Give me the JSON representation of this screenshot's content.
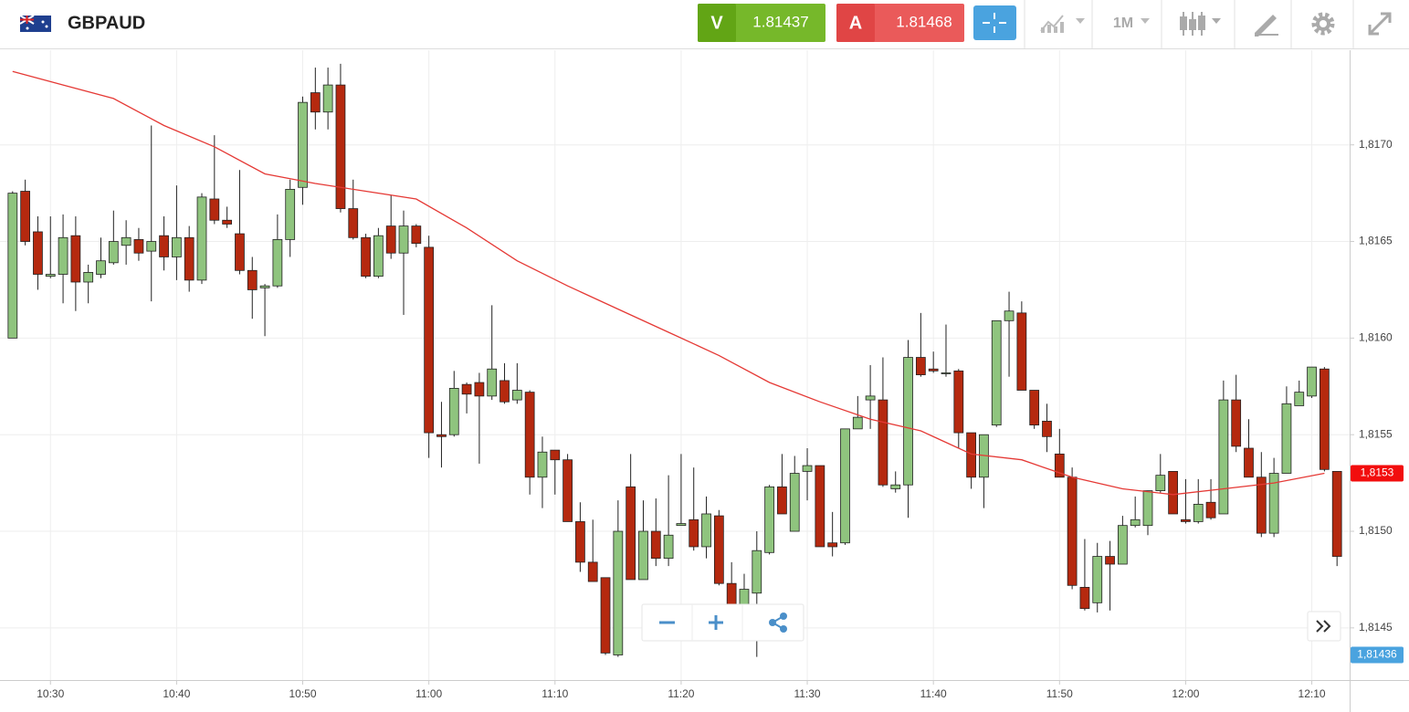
{
  "header": {
    "symbol": "GBPAUD",
    "sell_label": "V",
    "sell_price": "1.81437",
    "buy_label": "A",
    "buy_price": "1.81468",
    "timeframe": "1M"
  },
  "chart_data": {
    "type": "candlestick",
    "x": [
      "10:27",
      "10:28",
      "10:29",
      "10:30",
      "10:31",
      "10:32",
      "10:33",
      "10:34",
      "10:35",
      "10:36",
      "10:37",
      "10:38",
      "10:39",
      "10:40",
      "10:41",
      "10:42",
      "10:43",
      "10:44",
      "10:45",
      "10:46",
      "10:47",
      "10:48",
      "10:49",
      "10:50",
      "10:51",
      "10:52",
      "10:53",
      "10:54",
      "10:55",
      "10:56",
      "10:57",
      "10:58",
      "10:59",
      "11:00",
      "11:01",
      "11:02",
      "11:03",
      "11:04",
      "11:05",
      "11:06",
      "11:07",
      "11:08",
      "11:09",
      "11:10",
      "11:11",
      "11:12",
      "11:13",
      "11:14",
      "11:15",
      "11:16",
      "11:17",
      "11:18",
      "11:19",
      "11:20",
      "11:21",
      "11:22",
      "11:23",
      "11:24",
      "11:25",
      "11:26",
      "11:27",
      "11:28",
      "11:29",
      "11:30",
      "11:31",
      "11:32",
      "11:33",
      "11:34",
      "11:35",
      "11:36",
      "11:37",
      "11:38",
      "11:39",
      "11:40",
      "11:41",
      "11:42",
      "11:43",
      "11:44",
      "11:45",
      "11:46",
      "11:47",
      "11:48",
      "11:49",
      "11:50",
      "11:51",
      "11:52",
      "11:53",
      "11:54",
      "11:55",
      "11:56",
      "11:57",
      "11:58",
      "11:59",
      "12:00",
      "12:01",
      "12:02",
      "12:03",
      "12:04",
      "12:05",
      "12:06",
      "12:07",
      "12:08",
      "12:09",
      "12:10",
      "12:11",
      "12:12"
    ],
    "open": [
      1.816,
      1.81676,
      1.81655,
      1.81632,
      1.81633,
      1.81653,
      1.81629,
      1.81633,
      1.81639,
      1.81648,
      1.81651,
      1.81645,
      1.81653,
      1.81642,
      1.81652,
      1.8163,
      1.81672,
      1.81661,
      1.81654,
      1.81635,
      1.81626,
      1.81627,
      1.81651,
      1.81678,
      1.81727,
      1.81717,
      1.81731,
      1.81667,
      1.81652,
      1.81632,
      1.81658,
      1.81644,
      1.81658,
      1.81647,
      1.8155,
      1.8155,
      1.81576,
      1.81577,
      1.8157,
      1.81578,
      1.81568,
      1.81572,
      1.81528,
      1.81542,
      1.81537,
      1.81505,
      1.81484,
      1.81476,
      1.81436,
      1.81523,
      1.81475,
      1.815,
      1.81486,
      1.81503,
      1.81506,
      1.81492,
      1.81508,
      1.81473,
      1.81449,
      1.81468,
      1.81489,
      1.81523,
      1.815,
      1.81531,
      1.81534,
      1.81494,
      1.81494,
      1.81553,
      1.81568,
      1.81568,
      1.81522,
      1.81524,
      1.8159,
      1.81584,
      1.81582,
      1.81583,
      1.81551,
      1.81528,
      1.81555,
      1.81609,
      1.81613,
      1.81573,
      1.81557,
      1.8154,
      1.81528,
      1.81471,
      1.81463,
      1.81487,
      1.81483,
      1.81503,
      1.81503,
      1.81521,
      1.81531,
      1.81506,
      1.81505,
      1.81515,
      1.81509,
      1.81568,
      1.81543,
      1.81528,
      1.81499,
      1.8153,
      1.81565,
      1.8157,
      1.81584,
      1.81531
    ],
    "high": [
      1.81676,
      1.81682,
      1.81663,
      1.81663,
      1.81664,
      1.81663,
      1.81638,
      1.81652,
      1.81666,
      1.81661,
      1.81657,
      1.8171,
      1.81663,
      1.81679,
      1.81658,
      1.81675,
      1.81705,
      1.81668,
      1.81687,
      1.81642,
      1.81628,
      1.81664,
      1.81682,
      1.81725,
      1.8174,
      1.8174,
      1.81742,
      1.81682,
      1.81654,
      1.81657,
      1.81674,
      1.81666,
      1.81659,
      1.81653,
      1.81567,
      1.81583,
      1.81577,
      1.81582,
      1.81617,
      1.81587,
      1.81587,
      1.81573,
      1.81549,
      1.81542,
      1.8154,
      1.81515,
      1.81506,
      1.81476,
      1.81516,
      1.8154,
      1.81516,
      1.81517,
      1.81529,
      1.8154,
      1.81533,
      1.81518,
      1.81511,
      1.81484,
      1.81478,
      1.815,
      1.81524,
      1.8154,
      1.81539,
      1.81543,
      1.81534,
      1.8151,
      1.81553,
      1.8157,
      1.81586,
      1.8159,
      1.81531,
      1.81599,
      1.81613,
      1.81593,
      1.81607,
      1.81584,
      1.81551,
      1.8155,
      1.81609,
      1.81624,
      1.81619,
      1.81573,
      1.81566,
      1.81553,
      1.81533,
      1.81496,
      1.81494,
      1.81495,
      1.81508,
      1.81518,
      1.81521,
      1.8154,
      1.81531,
      1.81527,
      1.81527,
      1.81527,
      1.81578,
      1.81581,
      1.81558,
      1.81541,
      1.81538,
      1.81575,
      1.81578,
      1.81585,
      1.81585,
      1.81531
    ],
    "low": [
      1.816,
      1.81648,
      1.81625,
      1.81631,
      1.81618,
      1.81614,
      1.81618,
      1.81631,
      1.81638,
      1.81638,
      1.8164,
      1.81619,
      1.81635,
      1.8163,
      1.81624,
      1.81628,
      1.81659,
      1.81657,
      1.81633,
      1.8161,
      1.81601,
      1.81626,
      1.81642,
      1.81669,
      1.81708,
      1.81708,
      1.81665,
      1.81651,
      1.81631,
      1.81631,
      1.81641,
      1.81612,
      1.81647,
      1.81538,
      1.81533,
      1.81549,
      1.81561,
      1.81535,
      1.81568,
      1.81566,
      1.81566,
      1.81519,
      1.81512,
      1.81519,
      1.81505,
      1.81479,
      1.81474,
      1.81436,
      1.81435,
      1.81475,
      1.81475,
      1.81482,
      1.81482,
      1.81503,
      1.8149,
      1.81486,
      1.81472,
      1.8145,
      1.81449,
      1.81435,
      1.81488,
      1.81509,
      1.815,
      1.81516,
      1.81492,
      1.81487,
      1.81493,
      1.81553,
      1.81553,
      1.81523,
      1.8152,
      1.81507,
      1.8158,
      1.81582,
      1.8158,
      1.81543,
      1.81522,
      1.81512,
      1.81554,
      1.8158,
      1.81573,
      1.81553,
      1.81541,
      1.81528,
      1.8147,
      1.81459,
      1.81458,
      1.81459,
      1.81483,
      1.81502,
      1.81498,
      1.8152,
      1.81509,
      1.81504,
      1.81504,
      1.81506,
      1.81509,
      1.81541,
      1.81528,
      1.81497,
      1.81497,
      1.8153,
      1.81565,
      1.81569,
      1.81531,
      1.81482
    ],
    "close": [
      1.81675,
      1.8165,
      1.81633,
      1.81633,
      1.81652,
      1.81629,
      1.81634,
      1.8164,
      1.8165,
      1.81652,
      1.81644,
      1.8165,
      1.81642,
      1.81652,
      1.8163,
      1.81673,
      1.81661,
      1.81659,
      1.81635,
      1.81625,
      1.81627,
      1.81651,
      1.81677,
      1.81722,
      1.81717,
      1.81731,
      1.81667,
      1.81652,
      1.81632,
      1.81653,
      1.81644,
      1.81658,
      1.81649,
      1.81551,
      1.81549,
      1.81574,
      1.81571,
      1.8157,
      1.81584,
      1.81567,
      1.81573,
      1.81528,
      1.81541,
      1.81537,
      1.81505,
      1.81484,
      1.81474,
      1.81437,
      1.815,
      1.81475,
      1.815,
      1.81486,
      1.81498,
      1.81504,
      1.81492,
      1.81509,
      1.81473,
      1.81454,
      1.8147,
      1.8149,
      1.81523,
      1.81509,
      1.8153,
      1.81534,
      1.81492,
      1.81492,
      1.81553,
      1.81559,
      1.8157,
      1.81524,
      1.81524,
      1.8159,
      1.81581,
      1.81583,
      1.81582,
      1.81551,
      1.81528,
      1.8155,
      1.81609,
      1.81614,
      1.81573,
      1.81555,
      1.81549,
      1.81528,
      1.81472,
      1.8146,
      1.81487,
      1.81483,
      1.81503,
      1.81506,
      1.81521,
      1.81529,
      1.81509,
      1.81505,
      1.81514,
      1.81507,
      1.81568,
      1.81544,
      1.81528,
      1.81499,
      1.8153,
      1.81566,
      1.81572,
      1.81585,
      1.81532,
      1.81487
    ],
    "up_color": "#8fc47e",
    "down_color": "#b5290f",
    "ma": {
      "color": "#e53935",
      "x": [
        "10:27",
        "10:31",
        "10:35",
        "10:39",
        "10:43",
        "10:47",
        "10:51",
        "10:55",
        "10:59",
        "11:03",
        "11:07",
        "11:11",
        "11:15",
        "11:19",
        "11:23",
        "11:27",
        "11:31",
        "11:35",
        "11:39",
        "11:43",
        "11:47",
        "11:51",
        "11:55",
        "11:59",
        "12:03",
        "12:07",
        "12:11"
      ],
      "values": [
        1.81738,
        1.81731,
        1.81724,
        1.8171,
        1.81699,
        1.81685,
        1.8168,
        1.81676,
        1.81672,
        1.81657,
        1.8164,
        1.81627,
        1.81615,
        1.81603,
        1.81591,
        1.81577,
        1.81567,
        1.81558,
        1.81552,
        1.8154,
        1.81537,
        1.81528,
        1.81522,
        1.81519,
        1.81522,
        1.81525,
        1.8153
      ]
    },
    "xlim": [
      "10:26",
      "12:13"
    ],
    "xticks": [
      "10:30",
      "10:40",
      "10:50",
      "11:00",
      "11:10",
      "11:20",
      "11:30",
      "11:40",
      "11:50",
      "12:00",
      "12:10"
    ],
    "ylim": [
      1.81423,
      1.81749
    ],
    "yticks": [
      {
        "value": 1.8145,
        "label": "1,8145"
      },
      {
        "value": 1.815,
        "label": "1,8150"
      },
      {
        "value": 1.8155,
        "label": "1,8155"
      },
      {
        "value": 1.816,
        "label": "1,8160"
      },
      {
        "value": 1.8165,
        "label": "1,8165"
      },
      {
        "value": 1.817,
        "label": "1,8170"
      }
    ],
    "grid": true,
    "price_labels": [
      {
        "value": 1.8153,
        "label": "1,8153",
        "color": "#f20d0d"
      },
      {
        "value": 1.81436,
        "label": "1,81436",
        "color": "#4aa3df"
      }
    ]
  }
}
